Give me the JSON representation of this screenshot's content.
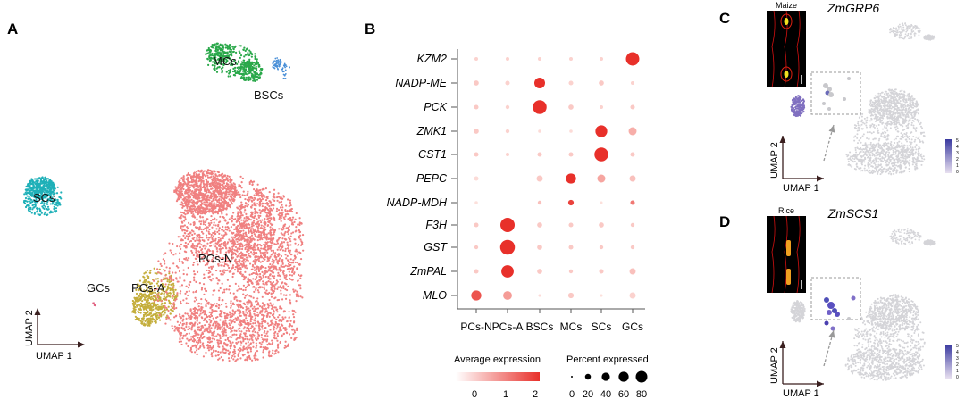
{
  "panels": {
    "a": "A",
    "b": "B",
    "c": "C",
    "d": "D"
  },
  "colors": {
    "pcs_n": "#f08080",
    "pcs_a": "#c4ae3c",
    "mcs": "#2aa84a",
    "bscs": "#4a90d8",
    "scs": "#1fb0b8",
    "gcs": "#e06080",
    "dot_high": "#e8302a",
    "dot_low": "#fde4e0",
    "umap_gray": "#d4d4d8",
    "feature_high": "#3a3aa0",
    "feature_low": "#e0d8ee"
  },
  "panel_a": {
    "clusters": [
      "MCs",
      "BSCs",
      "SCs",
      "GCs",
      "PCs-A",
      "PCs-N"
    ],
    "axis_x": "UMAP 1",
    "axis_y": "UMAP 2"
  },
  "chart_data": {
    "type": "dot",
    "genes": [
      "KZM2",
      "NADP-ME",
      "PCK",
      "ZMK1",
      "CST1",
      "PEPC",
      "NADP-MDH",
      "F3H",
      "GST",
      "ZmPAL",
      "MLO"
    ],
    "cell_types": [
      "PCs-N",
      "PCs-A",
      "BSCs",
      "MCs",
      "SCs",
      "GCs"
    ],
    "percent_expressed": [
      [
        5,
        5,
        5,
        5,
        5,
        70
      ],
      [
        10,
        8,
        45,
        8,
        10,
        5
      ],
      [
        8,
        6,
        75,
        10,
        5,
        8
      ],
      [
        10,
        6,
        4,
        4,
        55,
        25
      ],
      [
        8,
        5,
        8,
        8,
        75,
        8
      ],
      [
        8,
        0,
        15,
        40,
        25,
        15
      ],
      [
        4,
        0,
        6,
        12,
        3,
        8
      ],
      [
        8,
        80,
        10,
        8,
        10,
        6
      ],
      [
        6,
        85,
        10,
        8,
        6,
        6
      ],
      [
        8,
        60,
        10,
        6,
        8,
        15
      ],
      [
        40,
        30,
        3,
        12,
        3,
        15
      ]
    ],
    "average_expression": [
      [
        0.2,
        0.2,
        0.2,
        0.2,
        0.2,
        2
      ],
      [
        0.3,
        0.2,
        2,
        0.2,
        0.3,
        0.2
      ],
      [
        0.3,
        0.2,
        2,
        0.3,
        0.2,
        0.3
      ],
      [
        0.3,
        0.2,
        0.1,
        0.1,
        2,
        0.6
      ],
      [
        0.3,
        0.2,
        0.3,
        0.3,
        2,
        0.3
      ],
      [
        0.1,
        0,
        0.3,
        2,
        0.7,
        0.4
      ],
      [
        0.05,
        0,
        0.4,
        1.8,
        0.05,
        1.2
      ],
      [
        0.3,
        2,
        0.3,
        0.3,
        0.3,
        0.3
      ],
      [
        0.3,
        2,
        0.3,
        0.3,
        0.3,
        0.3
      ],
      [
        0.3,
        2,
        0.3,
        0.3,
        0.3,
        0.4
      ],
      [
        1.6,
        0.8,
        0.1,
        0.3,
        0.05,
        0.2
      ]
    ],
    "legend_color": {
      "title": "Average expression",
      "ticks": [
        "0",
        "1",
        "2"
      ]
    },
    "legend_size": {
      "title": "Percent expressed",
      "ticks": [
        "0",
        "20",
        "40",
        "60",
        "80"
      ]
    }
  },
  "panel_c": {
    "gene": "ZmGRP6",
    "inset_label": "Maize",
    "axis_x": "UMAP 1",
    "axis_y": "UMAP 2",
    "colorbar_ticks": [
      "0",
      "1",
      "2",
      "3",
      "4",
      "5"
    ]
  },
  "panel_d": {
    "gene": "ZmSCS1",
    "inset_label": "Rice",
    "axis_x": "UMAP 1",
    "axis_y": "UMAP 2",
    "colorbar_ticks": [
      "0",
      "1",
      "2",
      "3",
      "4",
      "5"
    ]
  }
}
